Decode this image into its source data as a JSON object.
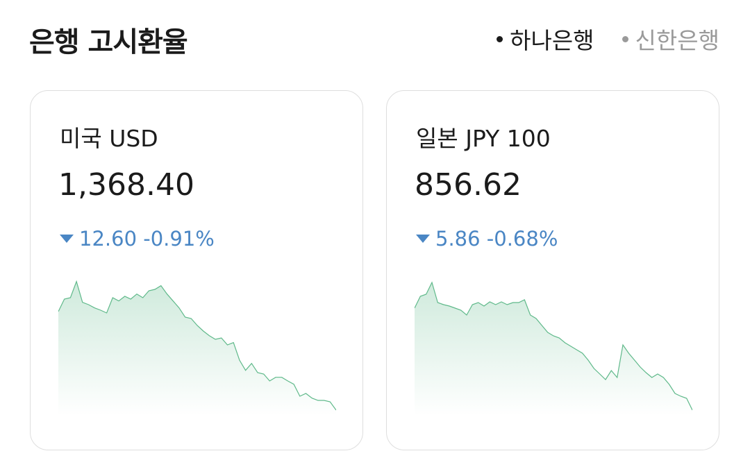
{
  "header": {
    "title": "은행 고시환율",
    "tabs": [
      {
        "label": "하나은행",
        "active": true
      },
      {
        "label": "신한은행",
        "active": false
      }
    ]
  },
  "cards": [
    {
      "name": "미국 USD",
      "rate": "1,368.40",
      "change": "12.60 -0.91%",
      "sparkline": {
        "type": "line",
        "color": "#5fb98a",
        "ylim": [
          1367.2,
          1397.2
        ],
        "values": [
          1389.7,
          1392.4,
          1392.7,
          1396.2,
          1391.7,
          1391.2,
          1390.5,
          1390.0,
          1389.4,
          1392.7,
          1392.0,
          1393.0,
          1392.4,
          1393.5,
          1392.7,
          1394.2,
          1394.5,
          1395.3,
          1393.5,
          1392.0,
          1390.5,
          1388.5,
          1388.2,
          1386.7,
          1385.5,
          1384.5,
          1383.7,
          1384.0,
          1382.5,
          1383.0,
          1379.2,
          1377.0,
          1378.5,
          1376.5,
          1376.2,
          1374.7,
          1375.5,
          1375.5,
          1374.7,
          1374.0,
          1371.4,
          1372.0,
          1371.0,
          1370.5,
          1370.5,
          1370.2,
          1368.4
        ]
      }
    },
    {
      "name": "일본 JPY 100",
      "rate": "856.62",
      "change": "5.86 -0.68%",
      "sparkline": {
        "type": "line",
        "color": "#5fb98a",
        "ylim": [
          856.14,
          868.14
        ],
        "values": [
          865.44,
          866.46,
          866.64,
          867.66,
          865.92,
          865.74,
          865.62,
          865.44,
          865.26,
          864.84,
          865.74,
          865.92,
          865.62,
          865.98,
          865.74,
          865.98,
          865.74,
          865.92,
          865.92,
          866.16,
          864.84,
          864.54,
          863.94,
          863.34,
          863.04,
          862.86,
          862.44,
          862.14,
          861.84,
          861.54,
          860.94,
          860.22,
          859.74,
          859.26,
          860.04,
          859.44,
          862.26,
          861.54,
          860.94,
          860.34,
          859.86,
          859.44,
          859.74,
          859.44,
          858.84,
          858.06,
          857.82,
          857.64,
          856.62
        ]
      }
    }
  ]
}
